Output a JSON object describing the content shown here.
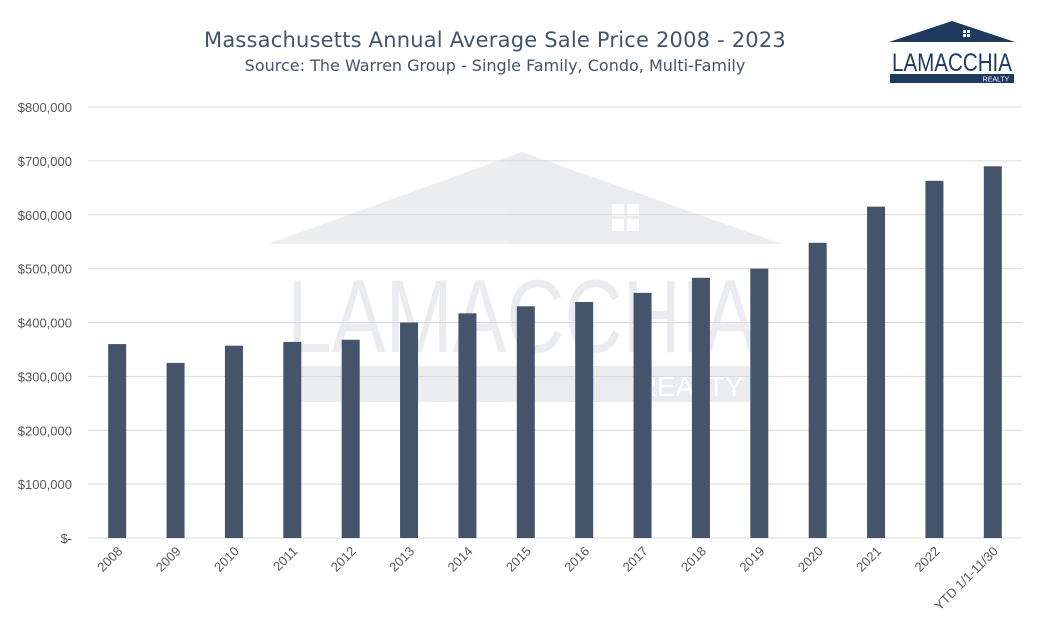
{
  "header": {
    "title": "Massachusetts Annual Average Sale Price 2008 - 2023",
    "subtitle": "Source: The Warren Group - Single Family, Condo, Multi-Family"
  },
  "logo": {
    "name": "LAMACCHIA",
    "tagline": "REALTY",
    "color": "#1f3a5f"
  },
  "chart_data": {
    "type": "bar",
    "title": "Massachusetts Annual Average Sale Price 2008 - 2023",
    "subtitle": "Source: The Warren Group - Single Family, Condo, Multi-Family",
    "xlabel": "",
    "ylabel": "",
    "ylim": [
      0,
      800000
    ],
    "grid": true,
    "legend": "none",
    "bar_color": "#44546a",
    "categories": [
      "2008",
      "2009",
      "2010",
      "2011",
      "2012",
      "2013",
      "2014",
      "2015",
      "2016",
      "2017",
      "2018",
      "2019",
      "2020",
      "2021",
      "2022",
      "YTD 1/1-11/30"
    ],
    "values": [
      360000,
      325000,
      357000,
      364000,
      368000,
      400000,
      417000,
      430000,
      438000,
      455000,
      483000,
      500000,
      548000,
      615000,
      663000,
      690000
    ],
    "y_tick_labels": [
      "$-",
      "$100,000",
      "$200,000",
      "$300,000",
      "$400,000",
      "$500,000",
      "$600,000",
      "$700,000",
      "$800,000"
    ],
    "y_ticks": [
      0,
      100000,
      200000,
      300000,
      400000,
      500000,
      600000,
      700000,
      800000
    ]
  }
}
